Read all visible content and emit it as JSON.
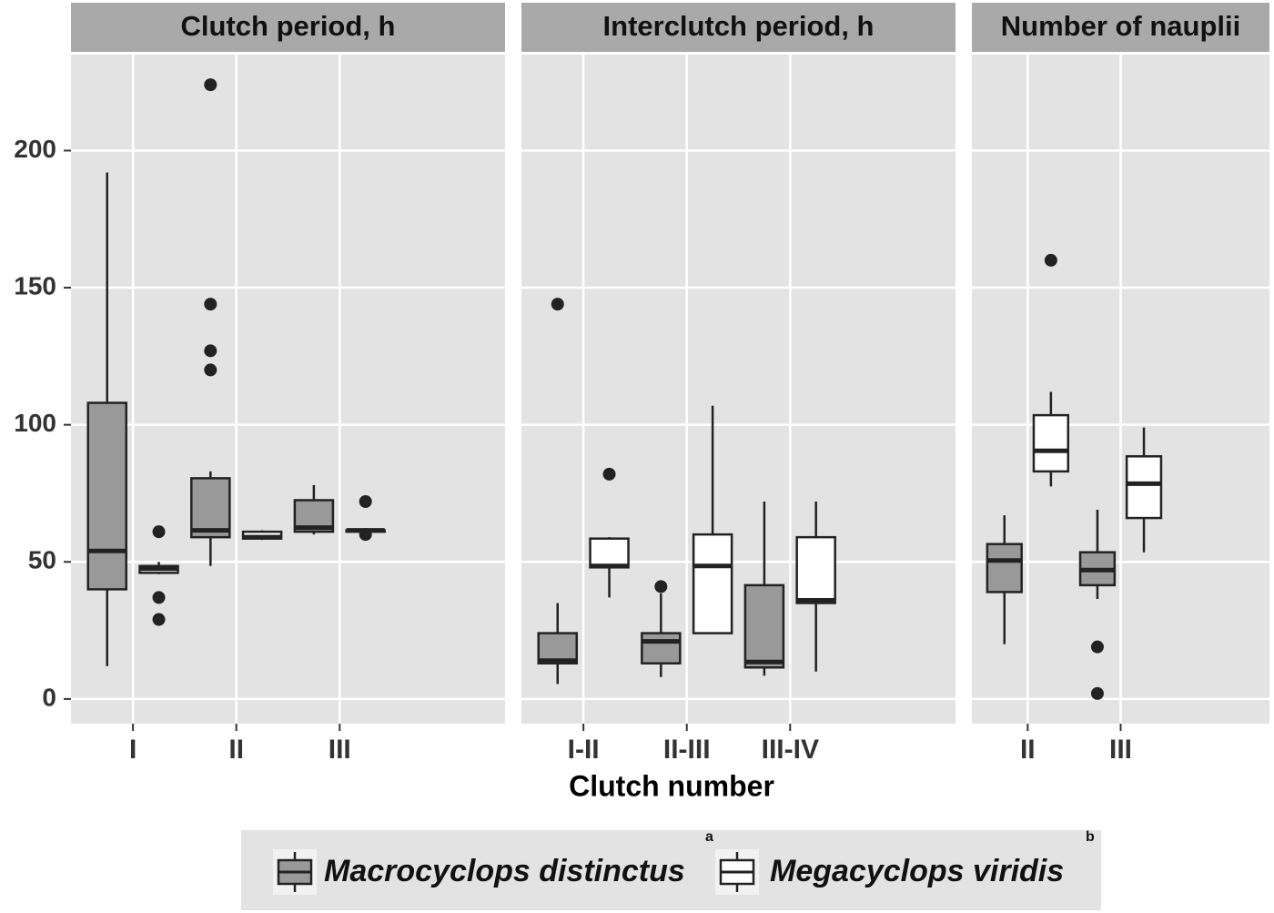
{
  "chart_data": {
    "type": "box",
    "x_label": "Clutch number",
    "ylim": [
      -9,
      235
    ],
    "yticks": [
      0,
      50,
      100,
      150,
      200
    ],
    "grid": true,
    "legend_position": "bottom",
    "series": [
      {
        "name": "Macrocyclops distinctus",
        "note": "a",
        "color": "#999999"
      },
      {
        "name": "Megacyclops viridis",
        "note": "b",
        "color": "#ffffff"
      }
    ],
    "facets": [
      {
        "title": "Clutch period, h",
        "categories": [
          "I",
          "II",
          "III"
        ],
        "boxes": [
          [
            {
              "min": 12,
              "q1": 40,
              "median": 54,
              "q3": 108,
              "max": 192,
              "outliers": []
            },
            {
              "min": 45.5,
              "q1": 46,
              "median": 47.5,
              "q3": 48.5,
              "max": 50,
              "outliers": [
                61,
                37,
                29
              ]
            }
          ],
          [
            {
              "min": 48.5,
              "q1": 59,
              "median": 61.5,
              "q3": 80.5,
              "max": 83,
              "outliers": [
                224,
                144,
                127,
                120
              ]
            },
            {
              "min": 58,
              "q1": 58.5,
              "median": 59,
              "q3": 61,
              "max": 61.5,
              "outliers": []
            }
          ],
          [
            {
              "min": 60,
              "q1": 61,
              "median": 62.5,
              "q3": 72.5,
              "max": 78,
              "outliers": []
            },
            {
              "min": 61,
              "q1": 61,
              "median": 61.5,
              "q3": 61.5,
              "max": 62,
              "outliers": [
                72,
                60
              ]
            }
          ]
        ]
      },
      {
        "title": "Interclutch period, h",
        "categories": [
          "I-II",
          "II-III",
          "III-IV"
        ],
        "boxes": [
          [
            {
              "min": 5.5,
              "q1": 13,
              "median": 14,
              "q3": 24,
              "max": 35,
              "outliers": [
                144
              ]
            },
            {
              "min": 37,
              "q1": 48,
              "median": 48.5,
              "q3": 58.5,
              "max": 59,
              "outliers": [
                82
              ]
            }
          ],
          [
            {
              "min": 8,
              "q1": 13,
              "median": 21,
              "q3": 24,
              "max": 38.5,
              "outliers": [
                41
              ]
            },
            {
              "min": 24,
              "q1": 24,
              "median": 48.5,
              "q3": 60,
              "max": 107,
              "outliers": []
            }
          ],
          [
            {
              "min": 8.5,
              "q1": 11.5,
              "median": 13.5,
              "q3": 41.5,
              "max": 72,
              "outliers": []
            },
            {
              "min": 10,
              "q1": 35,
              "median": 36,
              "q3": 59,
              "max": 72,
              "outliers": []
            }
          ]
        ]
      },
      {
        "title": "Number of nauplii",
        "categories": [
          "II",
          "III"
        ],
        "boxes": [
          [
            {
              "min": 20,
              "q1": 39,
              "median": 50.5,
              "q3": 56.5,
              "max": 67,
              "outliers": []
            },
            {
              "min": 77.5,
              "q1": 83,
              "median": 90.5,
              "q3": 103.5,
              "max": 112,
              "outliers": [
                160
              ]
            }
          ],
          [
            {
              "min": 36.5,
              "q1": 41.5,
              "median": 47,
              "q3": 53.5,
              "max": 69,
              "outliers": [
                19,
                2
              ]
            },
            {
              "min": 53.5,
              "q1": 66,
              "median": 78.5,
              "q3": 88.5,
              "max": 99,
              "outliers": []
            }
          ]
        ]
      }
    ]
  }
}
